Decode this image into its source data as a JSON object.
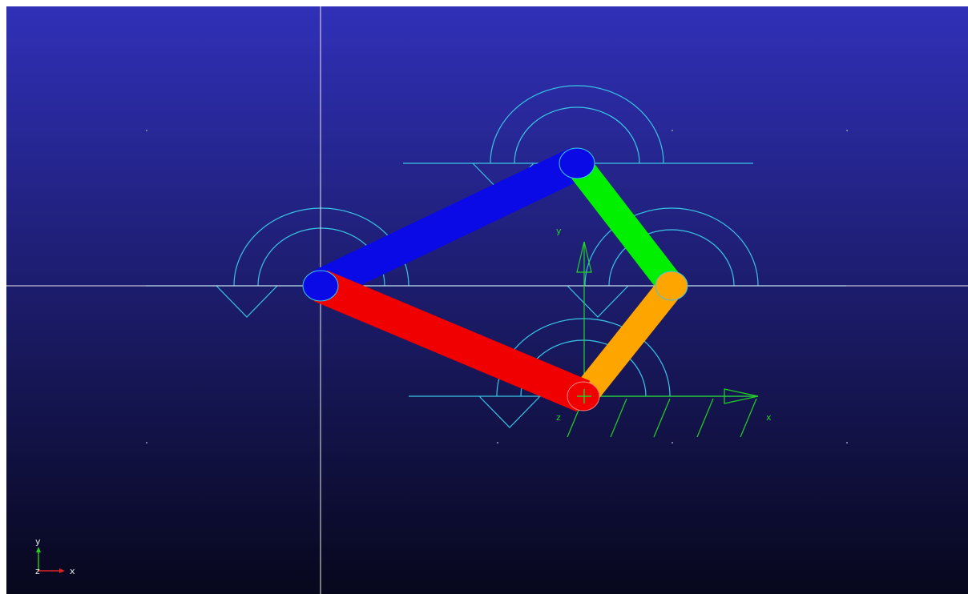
{
  "viewport": {
    "name": "3d-mechanism-viewport",
    "background_top": "#3030b8",
    "background_bottom": "#07071c"
  },
  "colors": {
    "wireframe": "#39c6e6",
    "crosshair": "#e8e8e8",
    "frame": "#22d422",
    "link_blue": "#0a0ae6",
    "link_red": "#f00000",
    "link_green": "#00f000",
    "link_orange": "#ffa500",
    "triad_y": "#22cc22",
    "triad_x": "#dd2222"
  },
  "frame_axes": {
    "x_label": "x",
    "y_label": "y",
    "z_label": "z"
  },
  "view_triad": {
    "x_label": "x",
    "y_label": "y",
    "z_label": "z"
  },
  "mechanism": {
    "links": [
      {
        "name": "blue-link",
        "color": "link_blue"
      },
      {
        "name": "green-link",
        "color": "link_green"
      },
      {
        "name": "orange-link",
        "color": "link_orange"
      },
      {
        "name": "red-link",
        "color": "link_red"
      }
    ],
    "joints": [
      {
        "name": "joint-a",
        "color": "link_blue"
      },
      {
        "name": "joint-b",
        "color": "link_blue"
      },
      {
        "name": "joint-c",
        "color": "link_orange"
      },
      {
        "name": "joint-d",
        "color": "link_red"
      }
    ]
  }
}
